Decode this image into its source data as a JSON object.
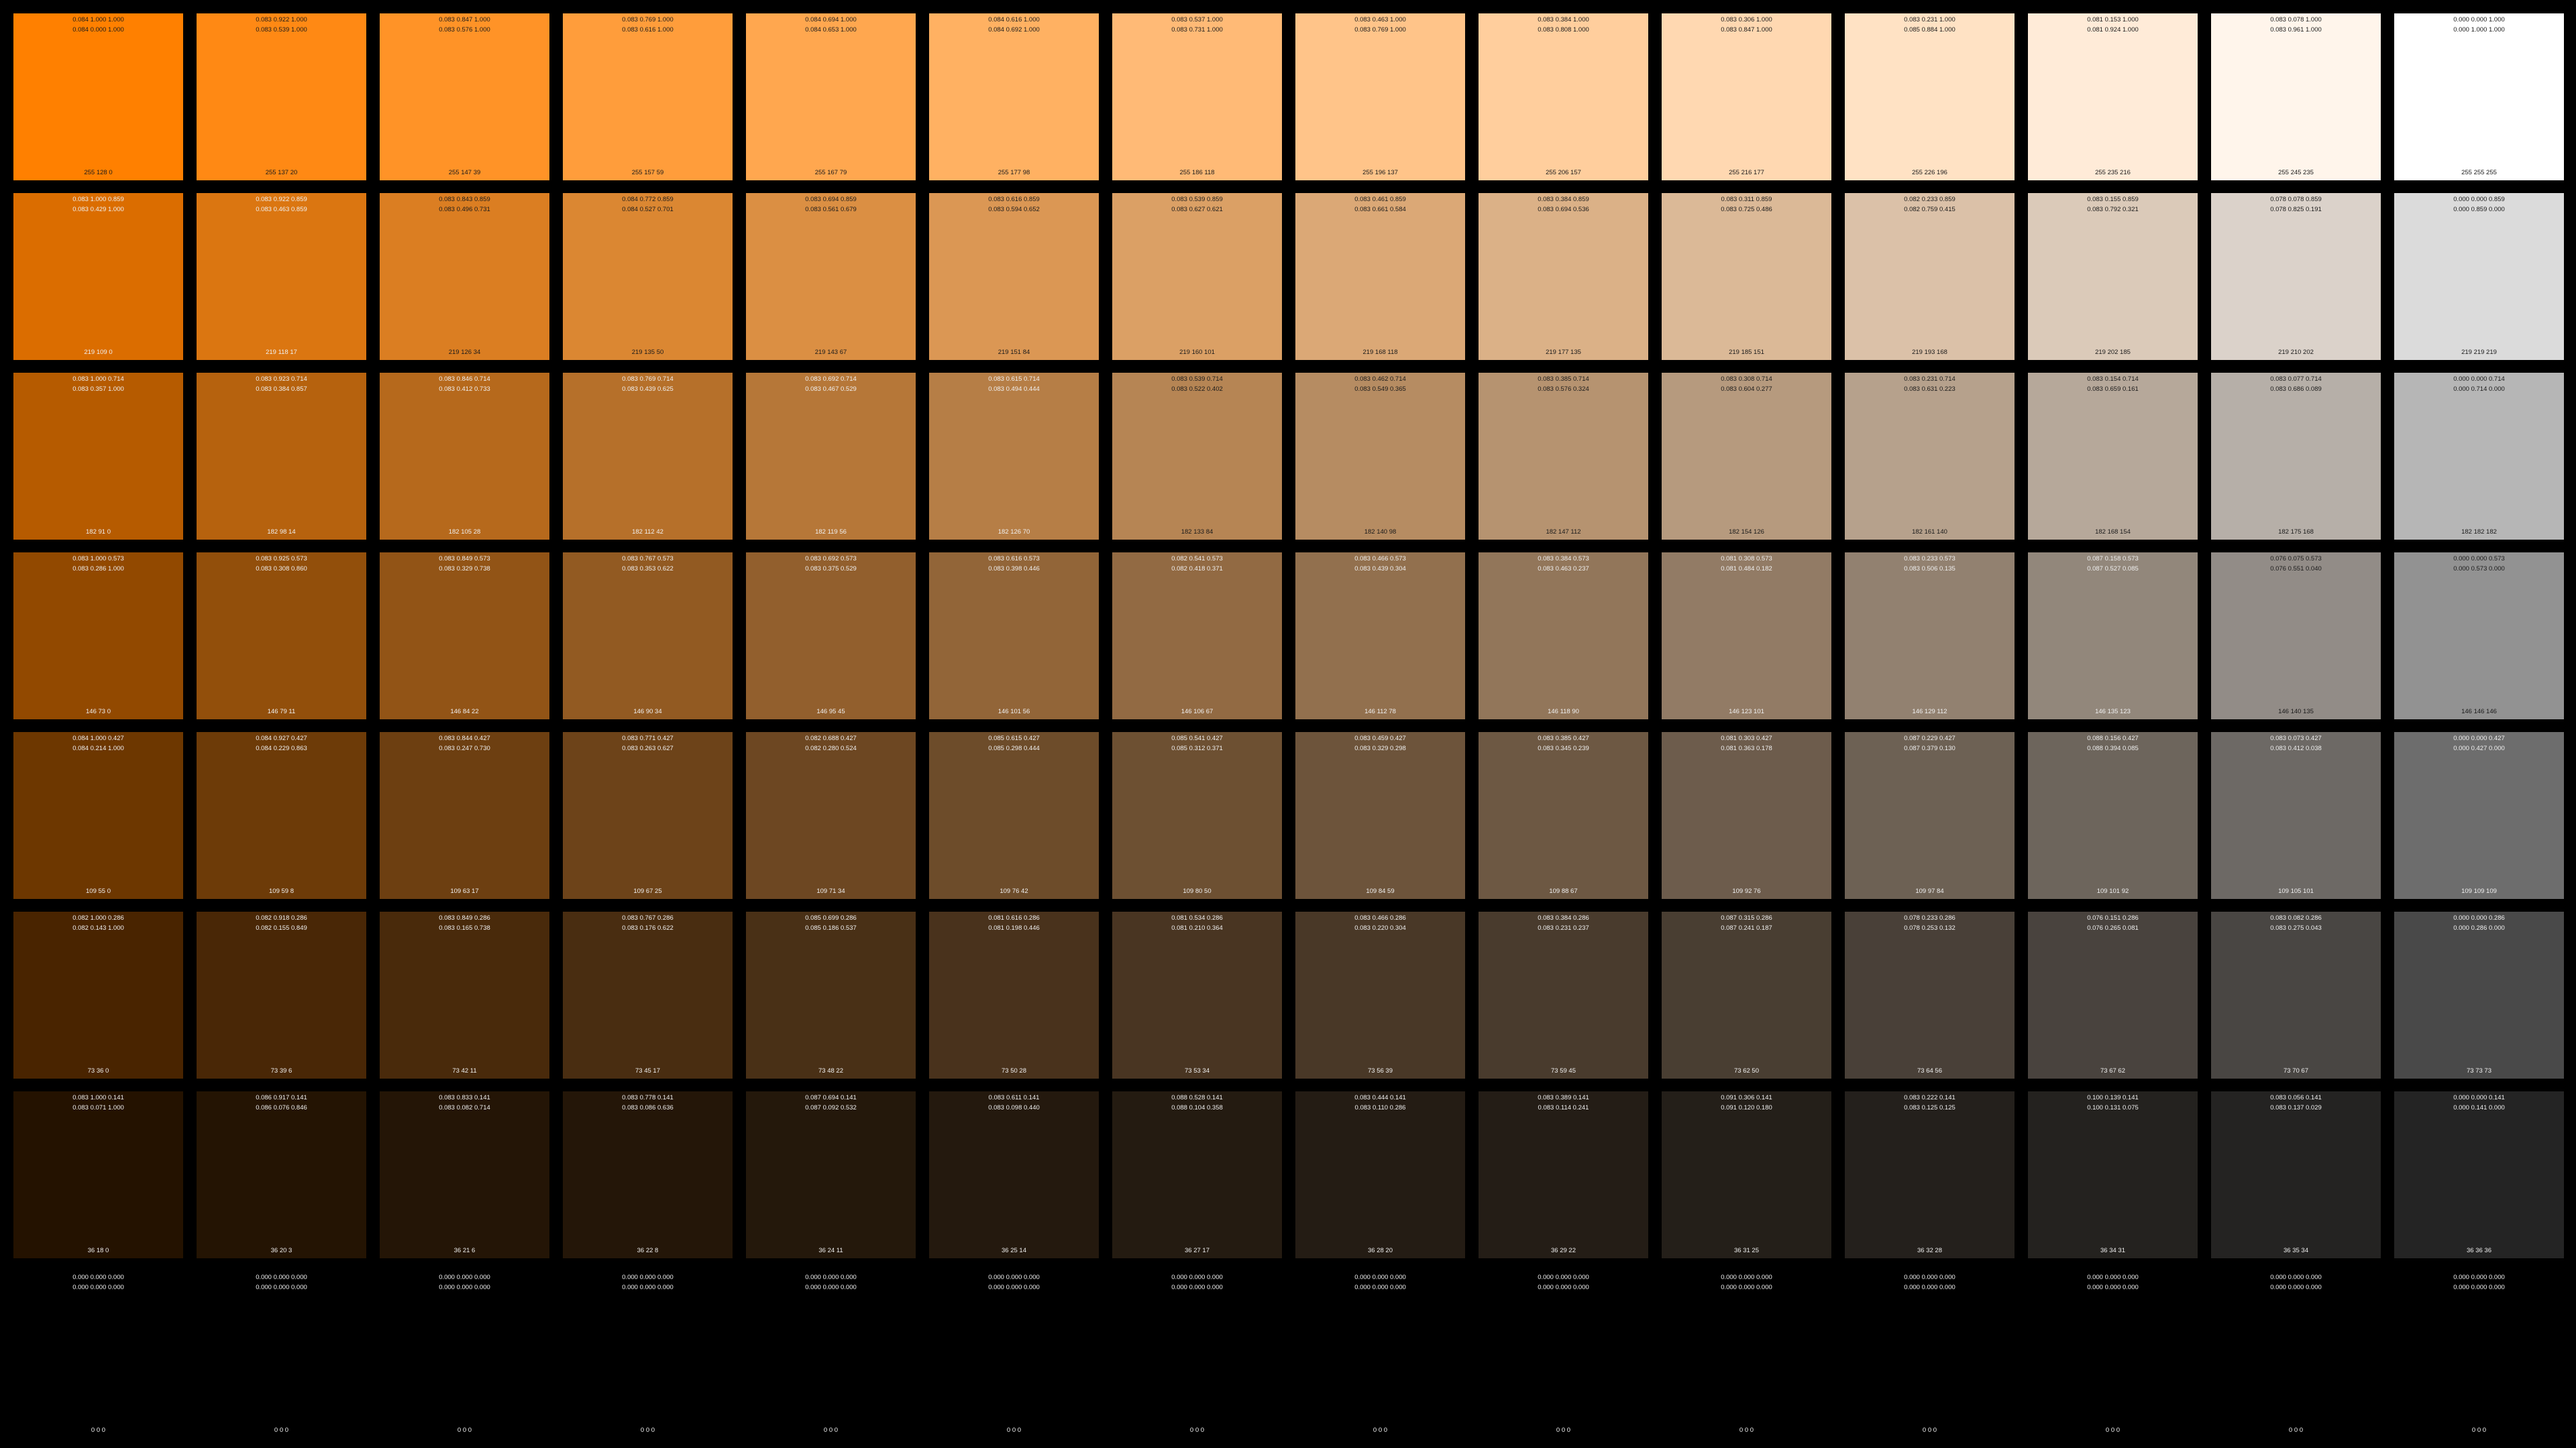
{
  "swatches": [
    {
      "rgb": [
        255,
        128,
        0
      ],
      "hsv": "0.084 1.000 1.000",
      "hsl": "0.084 0.000 1.000"
    },
    {
      "rgb": [
        255,
        137,
        20
      ],
      "hsv": "0.083 0.922 1.000",
      "hsl": "0.083 0.539 1.000"
    },
    {
      "rgb": [
        255,
        147,
        39
      ],
      "hsv": "0.083 0.847 1.000",
      "hsl": "0.083 0.576 1.000"
    },
    {
      "rgb": [
        255,
        157,
        59
      ],
      "hsv": "0.083 0.769 1.000",
      "hsl": "0.083 0.616 1.000"
    },
    {
      "rgb": [
        255,
        167,
        79
      ],
      "hsv": "0.084 0.694 1.000",
      "hsl": "0.084 0.653 1.000"
    },
    {
      "rgb": [
        255,
        177,
        98
      ],
      "hsv": "0.084 0.616 1.000",
      "hsl": "0.084 0.692 1.000"
    },
    {
      "rgb": [
        255,
        186,
        118
      ],
      "hsv": "0.083 0.537 1.000",
      "hsl": "0.083 0.731 1.000"
    },
    {
      "rgb": [
        255,
        196,
        137
      ],
      "hsv": "0.083 0.463 1.000",
      "hsl": "0.083 0.769 1.000"
    },
    {
      "rgb": [
        255,
        206,
        157
      ],
      "hsv": "0.083 0.384 1.000",
      "hsl": "0.083 0.808 1.000"
    },
    {
      "rgb": [
        255,
        216,
        177
      ],
      "hsv": "0.083 0.306 1.000",
      "hsl": "0.083 0.847 1.000"
    },
    {
      "rgb": [
        255,
        226,
        196
      ],
      "hsv": "0.083 0.231 1.000",
      "hsl": "0.085 0.884 1.000"
    },
    {
      "rgb": [
        255,
        235,
        216
      ],
      "hsv": "0.081 0.153 1.000",
      "hsl": "0.081 0.924 1.000"
    },
    {
      "rgb": [
        255,
        245,
        235
      ],
      "hsv": "0.083 0.078 1.000",
      "hsl": "0.083 0.961 1.000"
    },
    {
      "rgb": [
        255,
        255,
        255
      ],
      "hsv": "0.000 0.000 1.000",
      "hsl": "0.000 1.000 1.000"
    },
    {
      "rgb": [
        219,
        109,
        0
      ],
      "hsv": "0.083 1.000 0.859",
      "hsl": "0.083 0.429 1.000"
    },
    {
      "rgb": [
        219,
        118,
        17
      ],
      "hsv": "0.083 0.922 0.859",
      "hsl": "0.083 0.463 0.859"
    },
    {
      "rgb": [
        219,
        126,
        34
      ],
      "hsv": "0.083 0.843 0.859",
      "hsl": "0.083 0.496 0.731"
    },
    {
      "rgb": [
        219,
        135,
        50
      ],
      "hsv": "0.084 0.772 0.859",
      "hsl": "0.084 0.527 0.701"
    },
    {
      "rgb": [
        219,
        143,
        67
      ],
      "hsv": "0.083 0.694 0.859",
      "hsl": "0.083 0.561 0.679"
    },
    {
      "rgb": [
        219,
        151,
        84
      ],
      "hsv": "0.083 0.616 0.859",
      "hsl": "0.083 0.594 0.652"
    },
    {
      "rgb": [
        219,
        160,
        101
      ],
      "hsv": "0.083 0.539 0.859",
      "hsl": "0.083 0.627 0.621"
    },
    {
      "rgb": [
        219,
        168,
        118
      ],
      "hsv": "0.083 0.461 0.859",
      "hsl": "0.083 0.661 0.584"
    },
    {
      "rgb": [
        219,
        177,
        135
      ],
      "hsv": "0.083 0.384 0.859",
      "hsl": "0.083 0.694 0.536"
    },
    {
      "rgb": [
        219,
        185,
        151
      ],
      "hsv": "0.083 0.311 0.859",
      "hsl": "0.083 0.725 0.486"
    },
    {
      "rgb": [
        219,
        193,
        168
      ],
      "hsv": "0.082 0.233 0.859",
      "hsl": "0.082 0.759 0.415"
    },
    {
      "rgb": [
        219,
        202,
        185
      ],
      "hsv": "0.083 0.155 0.859",
      "hsl": "0.083 0.792 0.321"
    },
    {
      "rgb": [
        219,
        210,
        202
      ],
      "hsv": "0.078 0.078 0.859",
      "hsl": "0.078 0.825 0.191"
    },
    {
      "rgb": [
        219,
        219,
        219
      ],
      "hsv": "0.000 0.000 0.859",
      "hsl": "0.000 0.859 0.000"
    },
    {
      "rgb": [
        182,
        91,
        0
      ],
      "hsv": "0.083 1.000 0.714",
      "hsl": "0.083 0.357 1.000"
    },
    {
      "rgb": [
        182,
        98,
        14
      ],
      "hsv": "0.083 0.923 0.714",
      "hsl": "0.083 0.384 0.857"
    },
    {
      "rgb": [
        182,
        105,
        28
      ],
      "hsv": "0.083 0.846 0.714",
      "hsl": "0.083 0.412 0.733"
    },
    {
      "rgb": [
        182,
        112,
        42
      ],
      "hsv": "0.083 0.769 0.714",
      "hsl": "0.083 0.439 0.625"
    },
    {
      "rgb": [
        182,
        119,
        56
      ],
      "hsv": "0.083 0.692 0.714",
      "hsl": "0.083 0.467 0.529"
    },
    {
      "rgb": [
        182,
        126,
        70
      ],
      "hsv": "0.083 0.615 0.714",
      "hsl": "0.083 0.494 0.444"
    },
    {
      "rgb": [
        182,
        133,
        84
      ],
      "hsv": "0.083 0.539 0.714",
      "hsl": "0.083 0.522 0.402"
    },
    {
      "rgb": [
        182,
        140,
        98
      ],
      "hsv": "0.083 0.462 0.714",
      "hsl": "0.083 0.549 0.365"
    },
    {
      "rgb": [
        182,
        147,
        112
      ],
      "hsv": "0.083 0.385 0.714",
      "hsl": "0.083 0.576 0.324"
    },
    {
      "rgb": [
        182,
        154,
        126
      ],
      "hsv": "0.083 0.308 0.714",
      "hsl": "0.083 0.604 0.277"
    },
    {
      "rgb": [
        182,
        161,
        140
      ],
      "hsv": "0.083 0.231 0.714",
      "hsl": "0.083 0.631 0.223"
    },
    {
      "rgb": [
        182,
        168,
        154
      ],
      "hsv": "0.083 0.154 0.714",
      "hsl": "0.083 0.659 0.161"
    },
    {
      "rgb": [
        182,
        175,
        168
      ],
      "hsv": "0.083 0.077 0.714",
      "hsl": "0.083 0.686 0.089"
    },
    {
      "rgb": [
        182,
        182,
        182
      ],
      "hsv": "0.000 0.000 0.714",
      "hsl": "0.000 0.714 0.000"
    },
    {
      "rgb": [
        146,
        73,
        0
      ],
      "hsv": "0.083 1.000 0.573",
      "hsl": "0.083 0.286 1.000"
    },
    {
      "rgb": [
        146,
        79,
        11
      ],
      "hsv": "0.083 0.925 0.573",
      "hsl": "0.083 0.308 0.860"
    },
    {
      "rgb": [
        146,
        84,
        22
      ],
      "hsv": "0.083 0.849 0.573",
      "hsl": "0.083 0.329 0.738"
    },
    {
      "rgb": [
        146,
        90,
        34
      ],
      "hsv": "0.083 0.767 0.573",
      "hsl": "0.083 0.353 0.622"
    },
    {
      "rgb": [
        146,
        95,
        45
      ],
      "hsv": "0.083 0.692 0.573",
      "hsl": "0.083 0.375 0.529"
    },
    {
      "rgb": [
        146,
        101,
        56
      ],
      "hsv": "0.083 0.616 0.573",
      "hsl": "0.083 0.398 0.446"
    },
    {
      "rgb": [
        146,
        106,
        67
      ],
      "hsv": "0.082 0.541 0.573",
      "hsl": "0.082 0.418 0.371"
    },
    {
      "rgb": [
        146,
        112,
        78
      ],
      "hsv": "0.083 0.466 0.573",
      "hsl": "0.083 0.439 0.304"
    },
    {
      "rgb": [
        146,
        118,
        90
      ],
      "hsv": "0.083 0.384 0.573",
      "hsl": "0.083 0.463 0.237"
    },
    {
      "rgb": [
        146,
        123,
        101
      ],
      "hsv": "0.081 0.308 0.573",
      "hsl": "0.081 0.484 0.182"
    },
    {
      "rgb": [
        146,
        129,
        112
      ],
      "hsv": "0.083 0.233 0.573",
      "hsl": "0.083 0.506 0.135"
    },
    {
      "rgb": [
        146,
        135,
        123
      ],
      "hsv": "0.087 0.158 0.573",
      "hsl": "0.087 0.527 0.085"
    },
    {
      "rgb": [
        146,
        140,
        135
      ],
      "hsv": "0.076 0.075 0.573",
      "hsl": "0.076 0.551 0.040"
    },
    {
      "rgb": [
        146,
        146,
        146
      ],
      "hsv": "0.000 0.000 0.573",
      "hsl": "0.000 0.573 0.000"
    },
    {
      "rgb": [
        109,
        55,
        0
      ],
      "hsv": "0.084 1.000 0.427",
      "hsl": "0.084 0.214 1.000"
    },
    {
      "rgb": [
        109,
        59,
        8
      ],
      "hsv": "0.084 0.927 0.427",
      "hsl": "0.084 0.229 0.863"
    },
    {
      "rgb": [
        109,
        63,
        17
      ],
      "hsv": "0.083 0.844 0.427",
      "hsl": "0.083 0.247 0.730"
    },
    {
      "rgb": [
        109,
        67,
        25
      ],
      "hsv": "0.083 0.771 0.427",
      "hsl": "0.083 0.263 0.627"
    },
    {
      "rgb": [
        109,
        71,
        34
      ],
      "hsv": "0.082 0.688 0.427",
      "hsl": "0.082 0.280 0.524"
    },
    {
      "rgb": [
        109,
        76,
        42
      ],
      "hsv": "0.085 0.615 0.427",
      "hsl": "0.085 0.298 0.444"
    },
    {
      "rgb": [
        109,
        80,
        50
      ],
      "hsv": "0.085 0.541 0.427",
      "hsl": "0.085 0.312 0.371"
    },
    {
      "rgb": [
        109,
        84,
        59
      ],
      "hsv": "0.083 0.459 0.427",
      "hsl": "0.083 0.329 0.298"
    },
    {
      "rgb": [
        109,
        88,
        67
      ],
      "hsv": "0.083 0.385 0.427",
      "hsl": "0.083 0.345 0.239"
    },
    {
      "rgb": [
        109,
        92,
        76
      ],
      "hsv": "0.081 0.303 0.427",
      "hsl": "0.081 0.363 0.178"
    },
    {
      "rgb": [
        109,
        97,
        84
      ],
      "hsv": "0.087 0.229 0.427",
      "hsl": "0.087 0.379 0.130"
    },
    {
      "rgb": [
        109,
        101,
        92
      ],
      "hsv": "0.088 0.156 0.427",
      "hsl": "0.088 0.394 0.085"
    },
    {
      "rgb": [
        109,
        105,
        101
      ],
      "hsv": "0.083 0.073 0.427",
      "hsl": "0.083 0.412 0.038"
    },
    {
      "rgb": [
        109,
        109,
        109
      ],
      "hsv": "0.000 0.000 0.427",
      "hsl": "0.000 0.427 0.000"
    },
    {
      "rgb": [
        73,
        36,
        0
      ],
      "hsv": "0.082 1.000 0.286",
      "hsl": "0.082 0.143 1.000"
    },
    {
      "rgb": [
        73,
        39,
        6
      ],
      "hsv": "0.082 0.918 0.286",
      "hsl": "0.082 0.155 0.849"
    },
    {
      "rgb": [
        73,
        42,
        11
      ],
      "hsv": "0.083 0.849 0.286",
      "hsl": "0.083 0.165 0.738"
    },
    {
      "rgb": [
        73,
        45,
        17
      ],
      "hsv": "0.083 0.767 0.286",
      "hsl": "0.083 0.176 0.622"
    },
    {
      "rgb": [
        73,
        48,
        22
      ],
      "hsv": "0.085 0.699 0.286",
      "hsl": "0.085 0.186 0.537"
    },
    {
      "rgb": [
        73,
        50,
        28
      ],
      "hsv": "0.081 0.616 0.286",
      "hsl": "0.081 0.198 0.446"
    },
    {
      "rgb": [
        73,
        53,
        34
      ],
      "hsv": "0.081 0.534 0.286",
      "hsl": "0.081 0.210 0.364"
    },
    {
      "rgb": [
        73,
        56,
        39
      ],
      "hsv": "0.083 0.466 0.286",
      "hsl": "0.083 0.220 0.304"
    },
    {
      "rgb": [
        73,
        59,
        45
      ],
      "hsv": "0.083 0.384 0.286",
      "hsl": "0.083 0.231 0.237"
    },
    {
      "rgb": [
        73,
        62,
        50
      ],
      "hsv": "0.087 0.315 0.286",
      "hsl": "0.087 0.241 0.187"
    },
    {
      "rgb": [
        73,
        64,
        56
      ],
      "hsv": "0.078 0.233 0.286",
      "hsl": "0.078 0.253 0.132"
    },
    {
      "rgb": [
        73,
        67,
        62
      ],
      "hsv": "0.076 0.151 0.286",
      "hsl": "0.076 0.265 0.081"
    },
    {
      "rgb": [
        73,
        70,
        67
      ],
      "hsv": "0.083 0.082 0.286",
      "hsl": "0.083 0.275 0.043"
    },
    {
      "rgb": [
        73,
        73,
        73
      ],
      "hsv": "0.000 0.000 0.286",
      "hsl": "0.000 0.286 0.000"
    },
    {
      "rgb": [
        36,
        18,
        0
      ],
      "hsv": "0.083 1.000 0.141",
      "hsl": "0.083 0.071 1.000"
    },
    {
      "rgb": [
        36,
        20,
        3
      ],
      "hsv": "0.086 0.917 0.141",
      "hsl": "0.086 0.076 0.846"
    },
    {
      "rgb": [
        36,
        21,
        6
      ],
      "hsv": "0.083 0.833 0.141",
      "hsl": "0.083 0.082 0.714"
    },
    {
      "rgb": [
        36,
        22,
        8
      ],
      "hsv": "0.083 0.778 0.141",
      "hsl": "0.083 0.086 0.636"
    },
    {
      "rgb": [
        36,
        24,
        11
      ],
      "hsv": "0.087 0.694 0.141",
      "hsl": "0.087 0.092 0.532"
    },
    {
      "rgb": [
        36,
        25,
        14
      ],
      "hsv": "0.083 0.611 0.141",
      "hsl": "0.083 0.098 0.440"
    },
    {
      "rgb": [
        36,
        27,
        17
      ],
      "hsv": "0.088 0.528 0.141",
      "hsl": "0.088 0.104 0.358"
    },
    {
      "rgb": [
        36,
        28,
        20
      ],
      "hsv": "0.083 0.444 0.141",
      "hsl": "0.083 0.110 0.286"
    },
    {
      "rgb": [
        36,
        29,
        22
      ],
      "hsv": "0.083 0.389 0.141",
      "hsl": "0.083 0.114 0.241"
    },
    {
      "rgb": [
        36,
        31,
        25
      ],
      "hsv": "0.091 0.306 0.141",
      "hsl": "0.091 0.120 0.180"
    },
    {
      "rgb": [
        36,
        32,
        28
      ],
      "hsv": "0.083 0.222 0.141",
      "hsl": "0.083 0.125 0.125"
    },
    {
      "rgb": [
        36,
        34,
        31
      ],
      "hsv": "0.100 0.139 0.141",
      "hsl": "0.100 0.131 0.075"
    },
    {
      "rgb": [
        36,
        35,
        34
      ],
      "hsv": "0.083 0.056 0.141",
      "hsl": "0.083 0.137 0.029"
    },
    {
      "rgb": [
        36,
        36,
        36
      ],
      "hsv": "0.000 0.000 0.141",
      "hsl": "0.000 0.141 0.000"
    },
    {
      "rgb": [
        0,
        0,
        0
      ],
      "hsv": "0.000 0.000 0.000",
      "hsl": "0.000 0.000 0.000"
    },
    {
      "rgb": [
        0,
        0,
        0
      ],
      "hsv": "0.000 0.000 0.000",
      "hsl": "0.000 0.000 0.000"
    },
    {
      "rgb": [
        0,
        0,
        0
      ],
      "hsv": "0.000 0.000 0.000",
      "hsl": "0.000 0.000 0.000"
    },
    {
      "rgb": [
        0,
        0,
        0
      ],
      "hsv": "0.000 0.000 0.000",
      "hsl": "0.000 0.000 0.000"
    },
    {
      "rgb": [
        0,
        0,
        0
      ],
      "hsv": "0.000 0.000 0.000",
      "hsl": "0.000 0.000 0.000"
    },
    {
      "rgb": [
        0,
        0,
        0
      ],
      "hsv": "0.000 0.000 0.000",
      "hsl": "0.000 0.000 0.000"
    },
    {
      "rgb": [
        0,
        0,
        0
      ],
      "hsv": "0.000 0.000 0.000",
      "hsl": "0.000 0.000 0.000"
    },
    {
      "rgb": [
        0,
        0,
        0
      ],
      "hsv": "0.000 0.000 0.000",
      "hsl": "0.000 0.000 0.000"
    },
    {
      "rgb": [
        0,
        0,
        0
      ],
      "hsv": "0.000 0.000 0.000",
      "hsl": "0.000 0.000 0.000"
    },
    {
      "rgb": [
        0,
        0,
        0
      ],
      "hsv": "0.000 0.000 0.000",
      "hsl": "0.000 0.000 0.000"
    },
    {
      "rgb": [
        0,
        0,
        0
      ],
      "hsv": "0.000 0.000 0.000",
      "hsl": "0.000 0.000 0.000"
    },
    {
      "rgb": [
        0,
        0,
        0
      ],
      "hsv": "0.000 0.000 0.000",
      "hsl": "0.000 0.000 0.000"
    },
    {
      "rgb": [
        0,
        0,
        0
      ],
      "hsv": "0.000 0.000 0.000",
      "hsl": "0.000 0.000 0.000"
    },
    {
      "rgb": [
        0,
        0,
        0
      ],
      "hsv": "0.000 0.000 0.000",
      "hsl": "0.000 0.000 0.000"
    }
  ]
}
